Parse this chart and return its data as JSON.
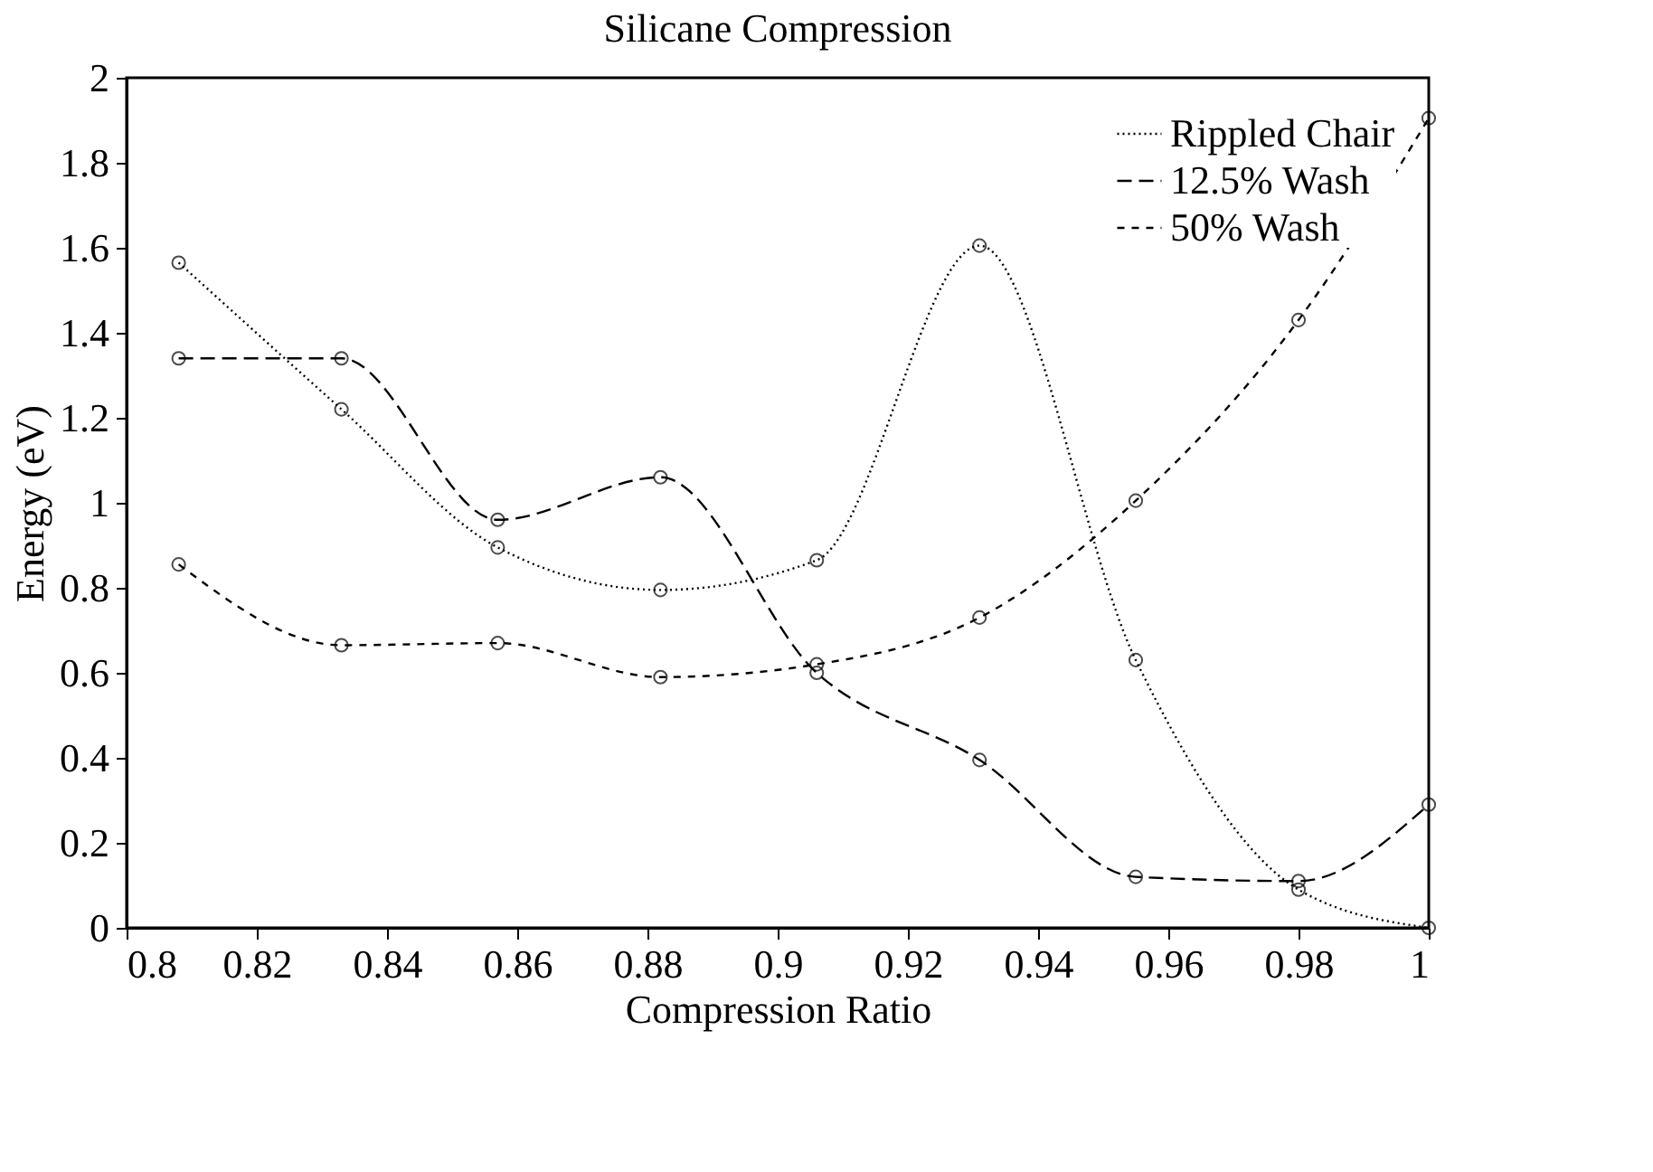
{
  "chart_data": {
    "type": "line",
    "title": "Silicane Compression",
    "xlabel": "Compression Ratio",
    "ylabel": "Energy (eV)",
    "x": [
      0.808,
      0.833,
      0.857,
      0.882,
      0.906,
      0.931,
      0.955,
      0.98,
      1.0
    ],
    "series": [
      {
        "name": "Rippled Chair",
        "color": "#000000",
        "line_style": "dotted",
        "values": [
          1.565,
          1.22,
          0.895,
          0.795,
          0.865,
          1.605,
          0.63,
          0.09,
          0.0
        ]
      },
      {
        "name": "12.5% Wash",
        "color": "#000000",
        "line_style": "dashed",
        "values": [
          1.34,
          1.34,
          0.96,
          1.06,
          0.6,
          0.395,
          0.12,
          0.11,
          0.29
        ]
      },
      {
        "name": "50% Wash",
        "color": "#000000",
        "line_style": "dashed",
        "values": [
          0.855,
          0.665,
          0.67,
          0.59,
          0.62,
          0.73,
          1.005,
          1.43,
          1.905
        ]
      }
    ],
    "xlim": [
      0.8,
      1.0
    ],
    "xticks": [
      0.8,
      0.82,
      0.84,
      0.86,
      0.88,
      0.9,
      0.92,
      0.94,
      0.96,
      0.98,
      1
    ],
    "ylim": [
      0,
      2
    ],
    "yticks": [
      0,
      0.2,
      0.4,
      0.6,
      0.8,
      1,
      1.2,
      1.4,
      1.6,
      1.8,
      2
    ],
    "grid": false,
    "legend": "top right",
    "marker": "circle"
  }
}
